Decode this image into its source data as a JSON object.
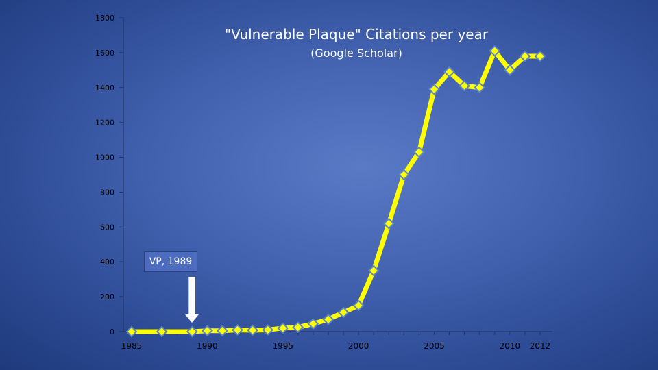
{
  "chart_data": {
    "type": "line",
    "title": "\"Vulnerable Plaque\" Citations per year",
    "subtitle": "(Google Scholar)",
    "xlabel": "",
    "ylabel": "",
    "xlim": [
      1985,
      2012
    ],
    "ylim": [
      0,
      1800
    ],
    "y_ticks": [
      0,
      200,
      400,
      600,
      800,
      1000,
      1200,
      1400,
      1600,
      1800
    ],
    "x_tick_labels": [
      {
        "year": 1985,
        "label": "1985"
      },
      {
        "year": 1990,
        "label": "1990"
      },
      {
        "year": 1995,
        "label": "1995"
      },
      {
        "year": 2000,
        "label": "2000"
      },
      {
        "year": 2005,
        "label": "2005"
      },
      {
        "year": 2010,
        "label": "2010"
      },
      {
        "year": 2012,
        "label": "2012"
      }
    ],
    "grid": false,
    "line_color": "#ffff00",
    "marker_fill": "#ffff00",
    "marker_stroke": "#5b86c6",
    "series": [
      {
        "x": [
          1985,
          1987,
          1989,
          1990,
          1991,
          1992,
          1993,
          1994,
          1995,
          1996,
          1997,
          1998,
          1999,
          2000,
          2001,
          2002,
          2003,
          2004,
          2005,
          2006,
          2007,
          2008,
          2009,
          2010,
          2011,
          2012
        ],
        "y": [
          0,
          0,
          0,
          5,
          5,
          10,
          8,
          10,
          20,
          25,
          45,
          70,
          110,
          150,
          350,
          620,
          900,
          1030,
          1390,
          1490,
          1410,
          1400,
          1610,
          1500,
          1580,
          1580
        ]
      }
    ],
    "annotations": [
      {
        "text": "VP, 1989",
        "points_to_year": 1989
      }
    ]
  }
}
